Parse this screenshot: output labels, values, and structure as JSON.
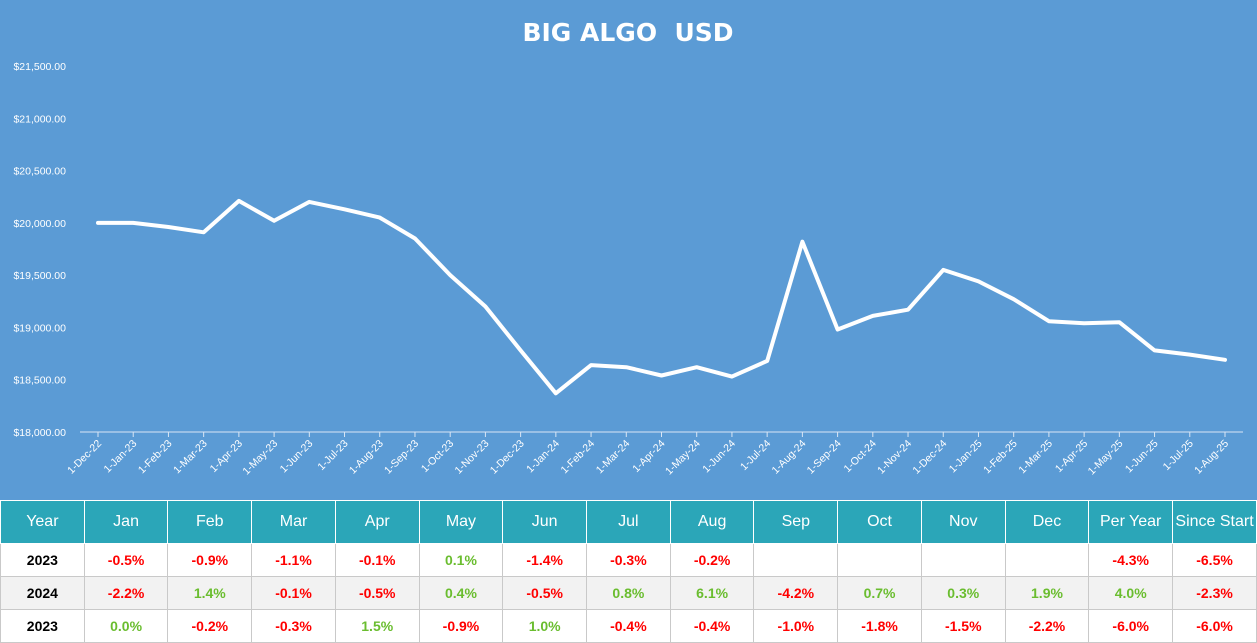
{
  "colors": {
    "background": "#5b9bd5",
    "line": "#ffffff",
    "table_header": "#2ba6b8",
    "positive": "#6abd2f",
    "negative": "#ff0000"
  },
  "chart_data": {
    "type": "line",
    "title": "BIG ALGO  USD",
    "xlabel": "",
    "ylabel": "",
    "ylim": [
      18000,
      21500
    ],
    "yticks": [
      18000,
      18500,
      19000,
      19500,
      20000,
      20500,
      21000,
      21500
    ],
    "ytick_labels": [
      "$18,000.00",
      "$18,500.00",
      "$19,000.00",
      "$19,500.00",
      "$20,000.00",
      "$20,500.00",
      "$21,000.00",
      "$21,500.00"
    ],
    "grid": false,
    "drop_lines": true,
    "categories": [
      "1-Dec-22",
      "1-Jan-23",
      "1-Feb-23",
      "1-Mar-23",
      "1-Apr-23",
      "1-May-23",
      "1-Jun-23",
      "1-Jul-23",
      "1-Aug-23",
      "1-Sep-23",
      "1-Oct-23",
      "1-Nov-23",
      "1-Dec-23",
      "1-Jan-24",
      "1-Feb-24",
      "1-Mar-24",
      "1-Apr-24",
      "1-May-24",
      "1-Jun-24",
      "1-Jul-24",
      "1-Aug-24",
      "1-Sep-24",
      "1-Oct-24",
      "1-Nov-24",
      "1-Dec-24",
      "1-Jan-25",
      "1-Feb-25",
      "1-Mar-25",
      "1-Apr-25",
      "1-May-25",
      "1-Jun-25",
      "1-Jul-25",
      "1-Aug-25"
    ],
    "values": [
      20000,
      20000,
      19960,
      19910,
      20210,
      20020,
      20200,
      20130,
      20050,
      19850,
      19500,
      19200,
      18780,
      18370,
      18640,
      18620,
      18540,
      18620,
      18530,
      18680,
      19820,
      18980,
      19110,
      19170,
      19550,
      19440,
      19270,
      19060,
      19040,
      19050,
      18780,
      18740,
      18690
    ]
  },
  "table": {
    "headers": [
      "Year",
      "Jan",
      "Feb",
      "Mar",
      "Apr",
      "May",
      "Jun",
      "Jul",
      "Aug",
      "Sep",
      "Oct",
      "Nov",
      "Dec",
      "Per Year",
      "Since Start"
    ],
    "rows": [
      {
        "year": "2023",
        "cells": [
          "-0.5%",
          "-0.9%",
          "-1.1%",
          "-0.1%",
          "0.1%",
          "-1.4%",
          "-0.3%",
          "-0.2%",
          "",
          "",
          "",
          "",
          "-4.3%",
          "-6.5%"
        ]
      },
      {
        "year": "2024",
        "cells": [
          "-2.2%",
          "1.4%",
          "-0.1%",
          "-0.5%",
          "0.4%",
          "-0.5%",
          "0.8%",
          "6.1%",
          "-4.2%",
          "0.7%",
          "0.3%",
          "1.9%",
          "4.0%",
          "-2.3%"
        ]
      },
      {
        "year": "2023",
        "cells": [
          "0.0%",
          "-0.2%",
          "-0.3%",
          "1.5%",
          "-0.9%",
          "1.0%",
          "-0.4%",
          "-0.4%",
          "-1.0%",
          "-1.8%",
          "-1.5%",
          "-2.2%",
          "-6.0%",
          "-6.0%"
        ]
      }
    ]
  }
}
